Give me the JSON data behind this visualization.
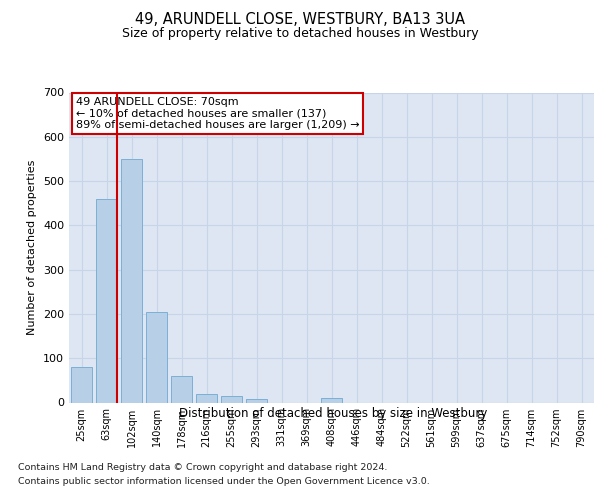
{
  "title": "49, ARUNDELL CLOSE, WESTBURY, BA13 3UA",
  "subtitle": "Size of property relative to detached houses in Westbury",
  "xlabel": "Distribution of detached houses by size in Westbury",
  "ylabel": "Number of detached properties",
  "categories": [
    "25sqm",
    "63sqm",
    "102sqm",
    "140sqm",
    "178sqm",
    "216sqm",
    "255sqm",
    "293sqm",
    "331sqm",
    "369sqm",
    "408sqm",
    "446sqm",
    "484sqm",
    "522sqm",
    "561sqm",
    "599sqm",
    "637sqm",
    "675sqm",
    "714sqm",
    "752sqm",
    "790sqm"
  ],
  "values": [
    80,
    460,
    550,
    205,
    60,
    20,
    15,
    8,
    0,
    0,
    10,
    0,
    0,
    0,
    0,
    0,
    0,
    0,
    0,
    0,
    0
  ],
  "bar_color": "#b8cfe8",
  "bar_edge_color": "#7aafd4",
  "highlight_bar_index": 1,
  "highlight_line_color": "#cc0000",
  "annotation_text": "49 ARUNDELL CLOSE: 70sqm\n← 10% of detached houses are smaller (137)\n89% of semi-detached houses are larger (1,209) →",
  "annotation_box_color": "#ffffff",
  "annotation_box_edge_color": "#cc0000",
  "ylim": [
    0,
    700
  ],
  "yticks": [
    0,
    100,
    200,
    300,
    400,
    500,
    600,
    700
  ],
  "grid_color": "#c8d4e8",
  "bg_color": "#dde6f2",
  "footer1": "Contains HM Land Registry data © Crown copyright and database right 2024.",
  "footer2": "Contains public sector information licensed under the Open Government Licence v3.0."
}
